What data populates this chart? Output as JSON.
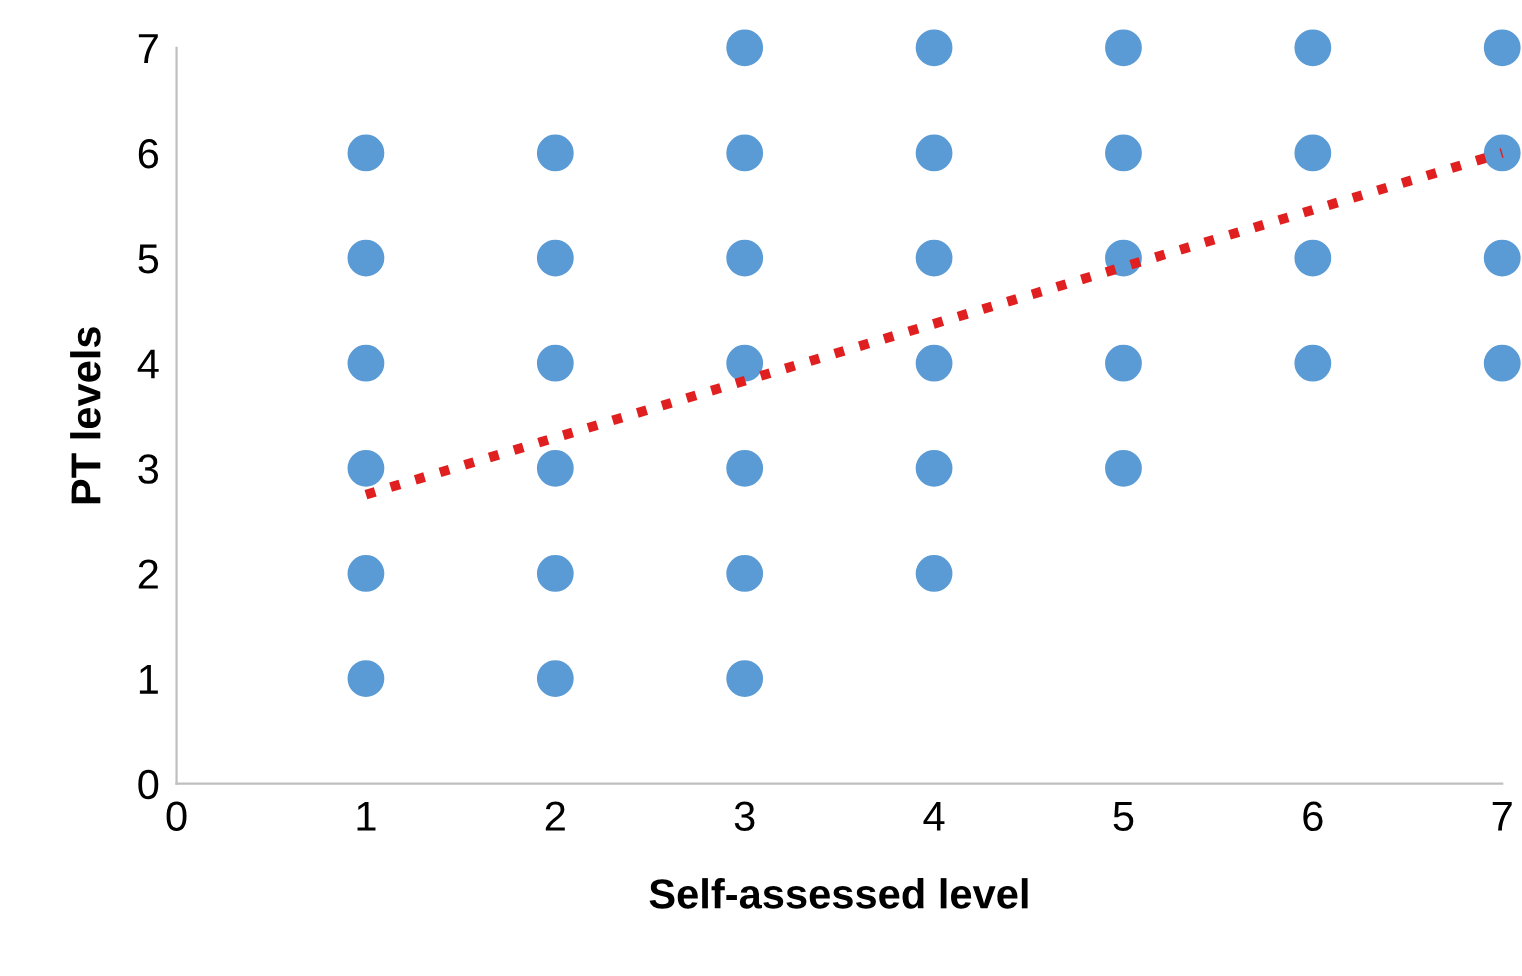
{
  "chart_data": {
    "type": "scatter",
    "xlabel": "Self-assessed level",
    "ylabel": "PT levels",
    "xlim": [
      0,
      7
    ],
    "ylim": [
      0,
      7
    ],
    "xticks": [
      0,
      1,
      2,
      3,
      4,
      5,
      6,
      7
    ],
    "yticks": [
      0,
      1,
      2,
      3,
      4,
      5,
      6,
      7
    ],
    "grid": false,
    "legend": false,
    "marker": "circle",
    "series": [
      {
        "color": "#5b9bd5",
        "x": [
          1,
          1,
          1,
          1,
          1,
          1,
          2,
          2,
          2,
          2,
          2,
          2,
          3,
          3,
          3,
          3,
          3,
          3,
          3,
          4,
          4,
          4,
          4,
          4,
          4,
          5,
          5,
          5,
          5,
          5,
          6,
          6,
          6,
          6,
          7,
          7,
          7,
          7
        ],
        "values": [
          1,
          2,
          3,
          4,
          5,
          6,
          1,
          2,
          3,
          4,
          5,
          6,
          1,
          2,
          3,
          4,
          5,
          6,
          7,
          2,
          3,
          4,
          5,
          6,
          7,
          3,
          4,
          5,
          6,
          7,
          4,
          5,
          6,
          7,
          4,
          5,
          6,
          7
        ]
      },
      {
        "type": "line",
        "color": "#e02020",
        "line_style": "dotted",
        "marker": "none",
        "x": [
          1,
          7
        ],
        "values": [
          2.75,
          6.0
        ]
      }
    ]
  }
}
